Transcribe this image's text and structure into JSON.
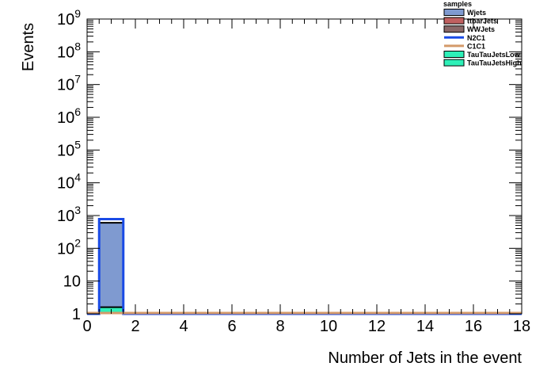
{
  "chart_data": {
    "type": "histogram",
    "xlabel": "Number of Jets in the event",
    "ylabel": "Events",
    "xlim": [
      0,
      18
    ],
    "ylim": [
      1,
      1000000000
    ],
    "yscale": "log",
    "grid": false,
    "legend_position": "top-right",
    "x_ticks": [
      "0",
      "2",
      "4",
      "6",
      "8",
      "10",
      "12",
      "14",
      "16",
      "18"
    ],
    "y_ticks": [
      {
        "value": 1,
        "base": "1",
        "exp": ""
      },
      {
        "value": 10,
        "base": "10",
        "exp": ""
      },
      {
        "value": 100,
        "base": "10",
        "exp": "2"
      },
      {
        "value": 1000,
        "base": "10",
        "exp": "3"
      },
      {
        "value": 10000,
        "base": "10",
        "exp": "4"
      },
      {
        "value": 100000,
        "base": "10",
        "exp": "5"
      },
      {
        "value": 1000000,
        "base": "10",
        "exp": "6"
      },
      {
        "value": 10000000,
        "base": "10",
        "exp": "7"
      },
      {
        "value": 100000000,
        "base": "10",
        "exp": "8"
      },
      {
        "value": 1000000000,
        "base": "10",
        "exp": "9"
      }
    ],
    "legend": {
      "title": "samples",
      "entries": [
        {
          "label": "Wjets",
          "style": "fill",
          "color": "#7f9ad0"
        },
        {
          "label": "ttbarJets",
          "style": "fill",
          "color": "#c06060"
        },
        {
          "label": "WWJets",
          "style": "fill",
          "color": "#8a6868"
        },
        {
          "label": "N2C1",
          "style": "line",
          "color": "#1a4be6"
        },
        {
          "label": "C1C1",
          "style": "line",
          "color": "#d49a6a"
        },
        {
          "label": "TauTauJetsLow",
          "style": "fill",
          "color": "#2ef0b8"
        },
        {
          "label": "TauTauJetsHigh",
          "style": "fill",
          "color": "#2ef0b8"
        }
      ]
    },
    "bins": {
      "edges": [
        0.5,
        1.5
      ]
    },
    "series": [
      {
        "name": "TauTauJetsLow",
        "style": "fill",
        "color": "#2ef0b8",
        "values": [
          1.6
        ]
      },
      {
        "name": "Wjets",
        "style": "fill",
        "color": "#7f9ad0",
        "values": [
          600
        ]
      },
      {
        "name": "N2C1",
        "style": "line",
        "color": "#1a4be6",
        "values": [
          780
        ]
      },
      {
        "name": "C1C1",
        "style": "line",
        "color": "#d49a6a",
        "values": [
          1
        ]
      }
    ]
  }
}
